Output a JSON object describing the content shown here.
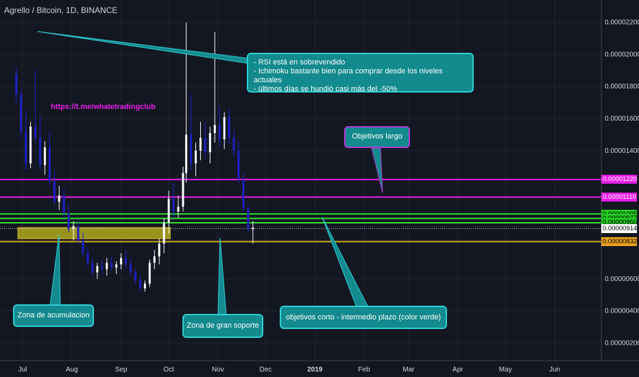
{
  "title": "Agrello / Bitcoin, 1D, BINANCE",
  "link_text": "https://t.me/whaletradingclub",
  "callouts": {
    "rsi": [
      "- RSI está en sobrevendido",
      "- Ichimoku  bastante bien para comprar desde los niveles actuales",
      "- últimos días se hundió casi más del -50%"
    ],
    "largo": "Objetivos largo",
    "acumulacion": "Zona de acumulacion",
    "soporte": "Zona de gran soporte",
    "corto": "objetivos corto - intermedio plazo (color verde)"
  },
  "colors": {
    "background": "#131722",
    "up": "#ffffff",
    "down": "#1e22c8",
    "magenta": "#e91ee9",
    "green": "#33dd33",
    "yellow": "#d4b020",
    "callout_fill": "#138a8e",
    "callout_border": "#2fd0d5",
    "callout_border_purple": "#b33ad6"
  },
  "price_badges": [
    {
      "label": "0.00001220",
      "value": 1.22e-05,
      "bg": "#e91ee9",
      "fg": "#ffffff"
    },
    {
      "label": "0.00001110",
      "value": 1.11e-05,
      "bg": "#e91ee9",
      "fg": "#ffffff"
    },
    {
      "label": "0.00001005",
      "value": 1.005e-05,
      "bg": "#22cc22",
      "fg": "#000000"
    },
    {
      "label": "0.00000977",
      "value": 9.77e-06,
      "bg": "#22cc22",
      "fg": "#000000"
    },
    {
      "label": "0.00000950",
      "value": 9.5e-06,
      "bg": "#22cc22",
      "fg": "#000000"
    },
    {
      "label": "0.00000914",
      "value": 9.14e-06,
      "bg": "#ffffff",
      "fg": "#000000"
    },
    {
      "label": "0.00000832",
      "value": 8.32e-06,
      "bg": "#e8a020",
      "fg": "#000000"
    }
  ],
  "chart_data": {
    "type": "candlestick",
    "y_ticks": [
      "0.00002200",
      "0.00002000",
      "0.00001800",
      "0.00001600",
      "0.00001400",
      "0.00000600",
      "0.00000400",
      "0.00000200"
    ],
    "y_tick_values": [
      2.2e-05,
      2e-05,
      1.8e-05,
      1.6e-05,
      1.4e-05,
      6e-06,
      4e-06,
      2e-06
    ],
    "ylim": [
      9e-07,
      2.34e-05
    ],
    "x_ticks": [
      "Jul",
      "Aug",
      "Sep",
      "Oct",
      "Nov",
      "Dec",
      "2019",
      "Feb",
      "Mar",
      "Apr",
      "May",
      "Jun"
    ],
    "x_tick_dates": [
      "2018-07-01",
      "2018-08-01",
      "2018-09-01",
      "2018-10-01",
      "2018-11-01",
      "2018-12-01",
      "2019-01-01",
      "2019-02-01",
      "2019-03-01",
      "2019-04-01",
      "2019-05-01",
      "2019-06-01"
    ],
    "horizontal_lines": [
      {
        "value": 1.22e-05,
        "color": "magenta"
      },
      {
        "value": 1.11e-05,
        "color": "magenta"
      },
      {
        "value": 1.005e-05,
        "color": "green"
      },
      {
        "value": 9.77e-06,
        "color": "green"
      },
      {
        "value": 9.5e-06,
        "color": "green"
      },
      {
        "value": 9.14e-06,
        "color": "white-dotted"
      },
      {
        "value": 8.32e-06,
        "color": "yellow"
      }
    ],
    "accumulation_zone": {
      "start": "2018-06-28",
      "end": "2018-10-02",
      "low": 8.5e-06,
      "high": 9.2e-06
    },
    "candles": [
      [
        "2018-06-27",
        1.88e-05,
        1.92e-05,
        1.7e-05,
        1.75e-05
      ],
      [
        "2018-06-30",
        1.75e-05,
        1.78e-05,
        1.48e-05,
        1.52e-05
      ],
      [
        "2018-07-03",
        1.52e-05,
        1.65e-05,
        1.28e-05,
        1.32e-05
      ],
      [
        "2018-07-06",
        1.32e-05,
        1.58e-05,
        1.29e-05,
        1.55e-05
      ],
      [
        "2018-07-09",
        1.55e-05,
        1.9e-05,
        1.45e-05,
        1.48e-05
      ],
      [
        "2018-07-12",
        1.48e-05,
        1.62e-05,
        1.28e-05,
        1.31e-05
      ],
      [
        "2018-07-15",
        1.31e-05,
        1.46e-05,
        1.25e-05,
        1.42e-05
      ],
      [
        "2018-07-18",
        1.42e-05,
        1.52e-05,
        1.18e-05,
        1.21e-05
      ],
      [
        "2018-07-21",
        1.21e-05,
        1.28e-05,
        1.06e-05,
        1.08e-05
      ],
      [
        "2018-07-24",
        1.08e-05,
        1.18e-05,
        1.03e-05,
        1.12e-05
      ],
      [
        "2018-07-27",
        1.12e-05,
        1.16e-05,
        9.8e-06,
        1.01e-05
      ],
      [
        "2018-07-30",
        1.01e-05,
        1.06e-05,
        8.9e-06,
        9.1e-06
      ],
      [
        "2018-08-02",
        9.1e-06,
        9.6e-06,
        8.4e-06,
        9.3e-06
      ],
      [
        "2018-08-05",
        9.3e-06,
        9.7e-06,
        8.2e-06,
        8.4e-06
      ],
      [
        "2018-08-08",
        8.4e-06,
        8.9e-06,
        7.4e-06,
        7.6e-06
      ],
      [
        "2018-08-11",
        7.6e-06,
        7.9e-06,
        6.8e-06,
        7e-06
      ],
      [
        "2018-08-14",
        7e-06,
        7.3e-06,
        6.2e-06,
        6.4e-06
      ],
      [
        "2018-08-17",
        6.4e-06,
        7e-06,
        6e-06,
        6.8e-06
      ],
      [
        "2018-08-20",
        6.8e-06,
        7.2e-06,
        6.3e-06,
        6.6e-06
      ],
      [
        "2018-08-23",
        6.6e-06,
        7.3e-06,
        6.2e-06,
        7e-06
      ],
      [
        "2018-08-26",
        7e-06,
        7.4e-06,
        6.5e-06,
        6.7e-06
      ],
      [
        "2018-08-29",
        6.7e-06,
        7.1e-06,
        6.3e-06,
        6.9e-06
      ],
      [
        "2018-09-01",
        6.9e-06,
        7.6e-06,
        6.6e-06,
        7.3e-06
      ],
      [
        "2018-09-04",
        7.3e-06,
        7.8e-06,
        6.7e-06,
        6.9e-06
      ],
      [
        "2018-09-07",
        6.9e-06,
        7.2e-06,
        6.2e-06,
        6.4e-06
      ],
      [
        "2018-09-10",
        6.4e-06,
        6.6e-06,
        5.7e-06,
        5.9e-06
      ],
      [
        "2018-09-13",
        5.9e-06,
        6.2e-06,
        5.2e-06,
        5.4e-06
      ],
      [
        "2018-09-16",
        5.4e-06,
        5.9e-06,
        5.2e-06,
        5.7e-06
      ],
      [
        "2018-09-19",
        5.7e-06,
        7.2e-06,
        5.5e-06,
        7e-06
      ],
      [
        "2018-09-22",
        7e-06,
        7.8e-06,
        6.6e-06,
        7.4e-06
      ],
      [
        "2018-09-25",
        7.4e-06,
        8.5e-06,
        6.9e-06,
        8.2e-06
      ],
      [
        "2018-09-28",
        8.2e-06,
        9.8e-06,
        7.6e-06,
        9.5e-06
      ],
      [
        "2018-10-01",
        9.5e-06,
        1.15e-05,
        8.8e-06,
        1.1e-05
      ],
      [
        "2018-10-04",
        1.1e-05,
        1.2e-05,
        9.8e-06,
        1.02e-05
      ],
      [
        "2018-10-07",
        1.02e-05,
        1.12e-05,
        9.8e-06,
        1.05e-05
      ],
      [
        "2018-10-10",
        1.05e-05,
        1.3e-05,
        1.02e-05,
        1.26e-05
      ],
      [
        "2018-10-12",
        1.26e-05,
        2.2e-05,
        1.2e-05,
        1.5e-05
      ],
      [
        "2018-10-15",
        1.5e-05,
        1.75e-05,
        1.28e-05,
        1.32e-05
      ],
      [
        "2018-10-18",
        1.32e-05,
        1.45e-05,
        1.24e-05,
        1.4e-05
      ],
      [
        "2018-10-21",
        1.4e-05,
        1.58e-05,
        1.34e-05,
        1.48e-05
      ],
      [
        "2018-10-24",
        1.48e-05,
        1.58e-05,
        1.35e-05,
        1.39e-05
      ],
      [
        "2018-10-27",
        1.39e-05,
        1.55e-05,
        1.32e-05,
        1.51e-05
      ],
      [
        "2018-10-30",
        1.51e-05,
        2.14e-05,
        1.45e-05,
        1.56e-05
      ],
      [
        "2018-11-02",
        1.56e-05,
        1.68e-05,
        1.43e-05,
        1.47e-05
      ],
      [
        "2018-11-05",
        1.47e-05,
        1.64e-05,
        1.41e-05,
        1.61e-05
      ],
      [
        "2018-11-08",
        1.61e-05,
        1.66e-05,
        1.44e-05,
        1.48e-05
      ],
      [
        "2018-11-11",
        1.48e-05,
        1.53e-05,
        1.36e-05,
        1.4e-05
      ],
      [
        "2018-11-14",
        1.4e-05,
        1.46e-05,
        1.2e-05,
        1.22e-05
      ],
      [
        "2018-11-17",
        1.22e-05,
        1.26e-05,
        1.02e-05,
        1.04e-05
      ],
      [
        "2018-11-20",
        1.04e-05,
        1.06e-05,
        8.9e-06,
        9.1e-06
      ],
      [
        "2018-11-23",
        9.1e-06,
        9.6e-06,
        8.2e-06,
        9.2e-06
      ]
    ]
  }
}
